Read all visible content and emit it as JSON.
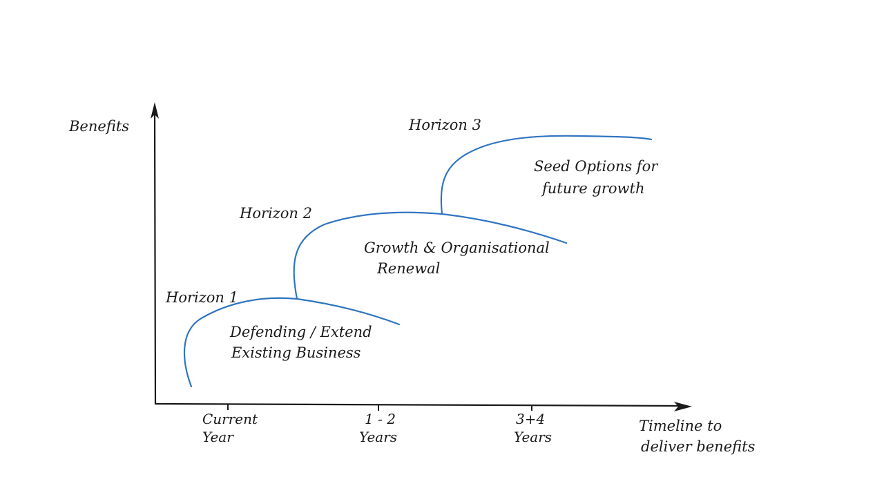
{
  "axes": {
    "y_label": "Benefits",
    "x_label_line1": "Timeline to",
    "x_label_line2": "deliver benefits",
    "ticks": [
      {
        "line1": "Current",
        "line2": "Year"
      },
      {
        "line1": "1 - 2",
        "line2": "Years"
      },
      {
        "line1": "3+4",
        "line2": "Years"
      }
    ]
  },
  "horizons": [
    {
      "label": "Horizon 1",
      "description_line1": "Defending / Extend",
      "description_line2": "Existing Business"
    },
    {
      "label": "Horizon 2",
      "description_line1": "Growth & Organisational",
      "description_line2": "Renewal"
    },
    {
      "label": "Horizon 3",
      "description_line1": "Seed Options for",
      "description_line2": "future growth"
    }
  ],
  "colors": {
    "curve": "#2f74c0",
    "axis": "#1a1a1a"
  }
}
